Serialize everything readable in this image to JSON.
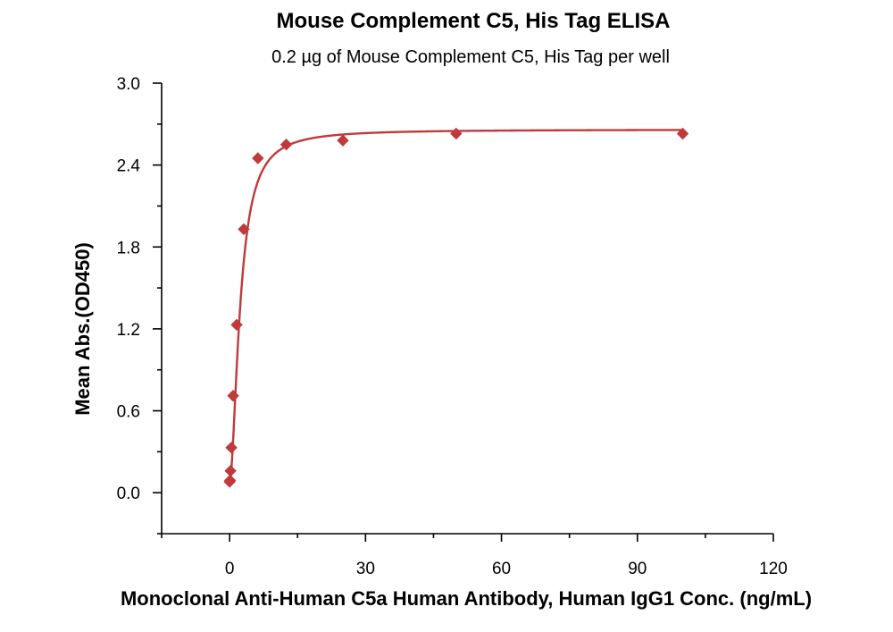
{
  "chart_data": {
    "type": "scatter",
    "title": "Mouse Complement C5, His Tag ELISA",
    "subtitle": "0.2 µg of Mouse Complement C5, His Tag per well",
    "xlabel": "Monoclonal Anti-Human C5a Human Antibody, Human IgG1 Conc. (ng/mL)",
    "ylabel": "Mean Abs.(OD450)",
    "xlim": [
      -15,
      120
    ],
    "ylim": [
      -0.3,
      3.0
    ],
    "x_ticks": [
      0,
      30,
      60,
      90,
      120
    ],
    "x_tick_labels": [
      "0",
      "30",
      "60",
      "90",
      "120"
    ],
    "y_ticks": [
      0.0,
      0.6,
      1.2,
      1.8,
      2.4,
      3.0
    ],
    "y_tick_labels": [
      "0.0",
      "0.6",
      "1.2",
      "1.8",
      "2.4",
      "3.0"
    ],
    "grid": false,
    "colors": {
      "series": "#c0393b"
    },
    "series": [
      {
        "marker": "diamond",
        "fit": "four-parameter logistic curve",
        "x": [
          0.0,
          0.098,
          0.195,
          0.39,
          0.78,
          1.56,
          3.13,
          6.25,
          12.5,
          25,
          50,
          100
        ],
        "y": [
          0.08,
          0.09,
          0.16,
          0.33,
          0.71,
          1.23,
          1.93,
          2.45,
          2.55,
          2.58,
          2.63,
          2.63
        ]
      }
    ]
  }
}
